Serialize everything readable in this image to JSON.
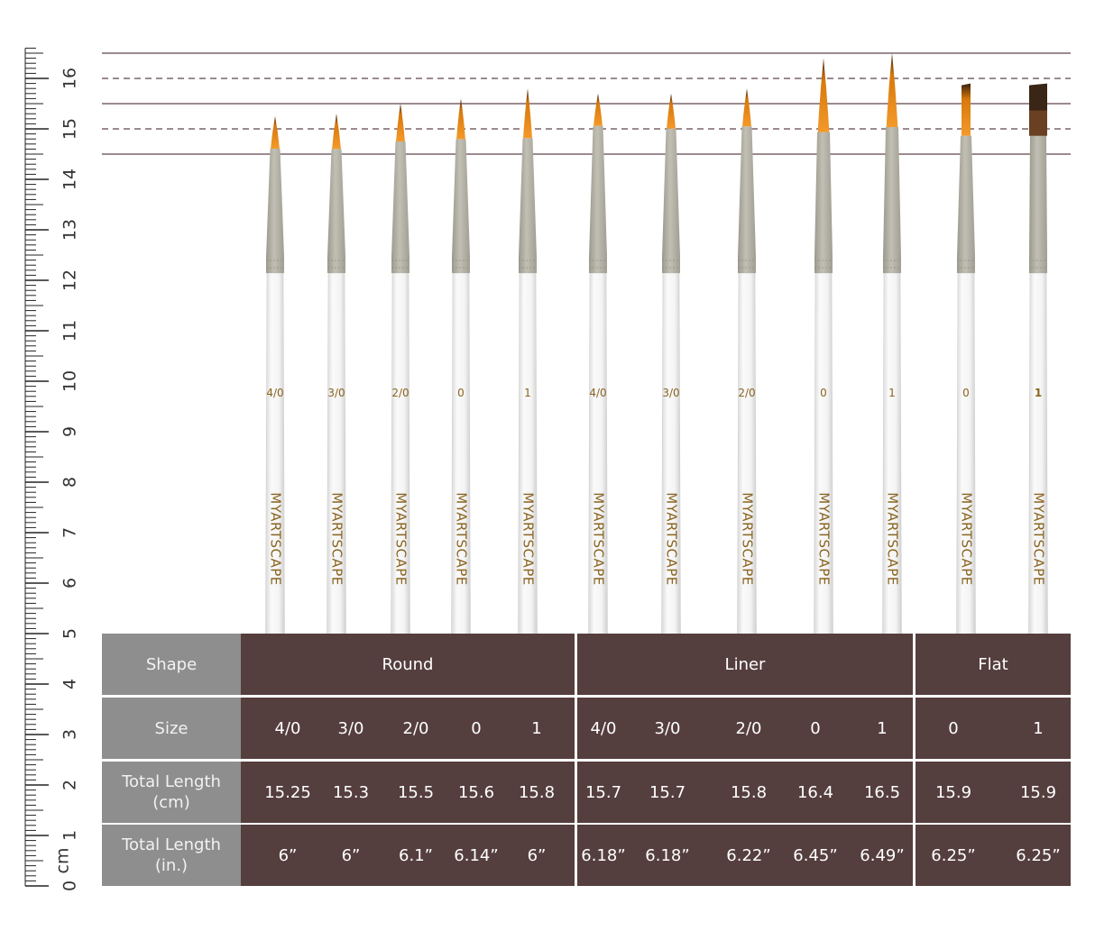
{
  "ruler": {
    "unit_label": "cm",
    "min": 0,
    "max": 16
  },
  "brand": "MYARTSCAPE",
  "colors": {
    "table_brown": "#553e3e",
    "label_gray": "#8e8e8e",
    "ferrule": "#b4b2a6",
    "bristle": "#e8870f",
    "guide_line": "#7a6468"
  },
  "brushes": [
    {
      "shape": "Round",
      "size": "4/0",
      "handle_mark": "4/0",
      "cm": 15.25
    },
    {
      "shape": "Round",
      "size": "3/0",
      "handle_mark": "3/0",
      "cm": 15.3
    },
    {
      "shape": "Round",
      "size": "2/0",
      "handle_mark": "2/0",
      "cm": 15.5
    },
    {
      "shape": "Round",
      "size": "0",
      "handle_mark": "0",
      "cm": 15.6
    },
    {
      "shape": "Round",
      "size": "1",
      "handle_mark": "1",
      "cm": 15.8
    },
    {
      "shape": "Liner",
      "size": "4/0",
      "handle_mark": "4/0",
      "cm": 15.7
    },
    {
      "shape": "Liner",
      "size": "3/0",
      "handle_mark": "3/0",
      "cm": 15.7
    },
    {
      "shape": "Liner",
      "size": "2/0",
      "handle_mark": "2/0",
      "cm": 15.8
    },
    {
      "shape": "Liner",
      "size": "0",
      "handle_mark": "0",
      "cm": 16.4
    },
    {
      "shape": "Liner",
      "size": "1",
      "handle_mark": "1",
      "cm": 16.5
    },
    {
      "shape": "Flat",
      "size": "0",
      "handle_mark": "0",
      "cm": 15.9
    },
    {
      "shape": "Flat",
      "size": "1",
      "handle_mark": "1",
      "cm": 15.9
    }
  ],
  "table": {
    "labels": {
      "shape": "Shape",
      "size": "Size",
      "length_cm": "Total Length\n(cm)",
      "length_in": "Total Length\n(in.)"
    },
    "groups": [
      {
        "name": "Round",
        "sizes": [
          "4/0",
          "3/0",
          "2/0",
          "0",
          "1"
        ],
        "cm": [
          "15.25",
          "15.3",
          "15.5",
          "15.6",
          "15.8"
        ],
        "in": [
          "6”",
          "6”",
          "6.1”",
          "6.14”",
          "6”"
        ]
      },
      {
        "name": "Liner",
        "sizes": [
          "4/0",
          "3/0",
          "2/0",
          "0",
          "1"
        ],
        "cm": [
          "15.7",
          "15.7",
          "15.8",
          "16.4",
          "16.5"
        ],
        "in": [
          "6.18”",
          "6.18”",
          "6.22”",
          "6.45”",
          "6.49”"
        ]
      },
      {
        "name": "Flat",
        "sizes": [
          "0",
          "1"
        ],
        "cm": [
          "15.9",
          "15.9"
        ],
        "in": [
          "6.25”",
          "6.25”"
        ]
      }
    ]
  }
}
